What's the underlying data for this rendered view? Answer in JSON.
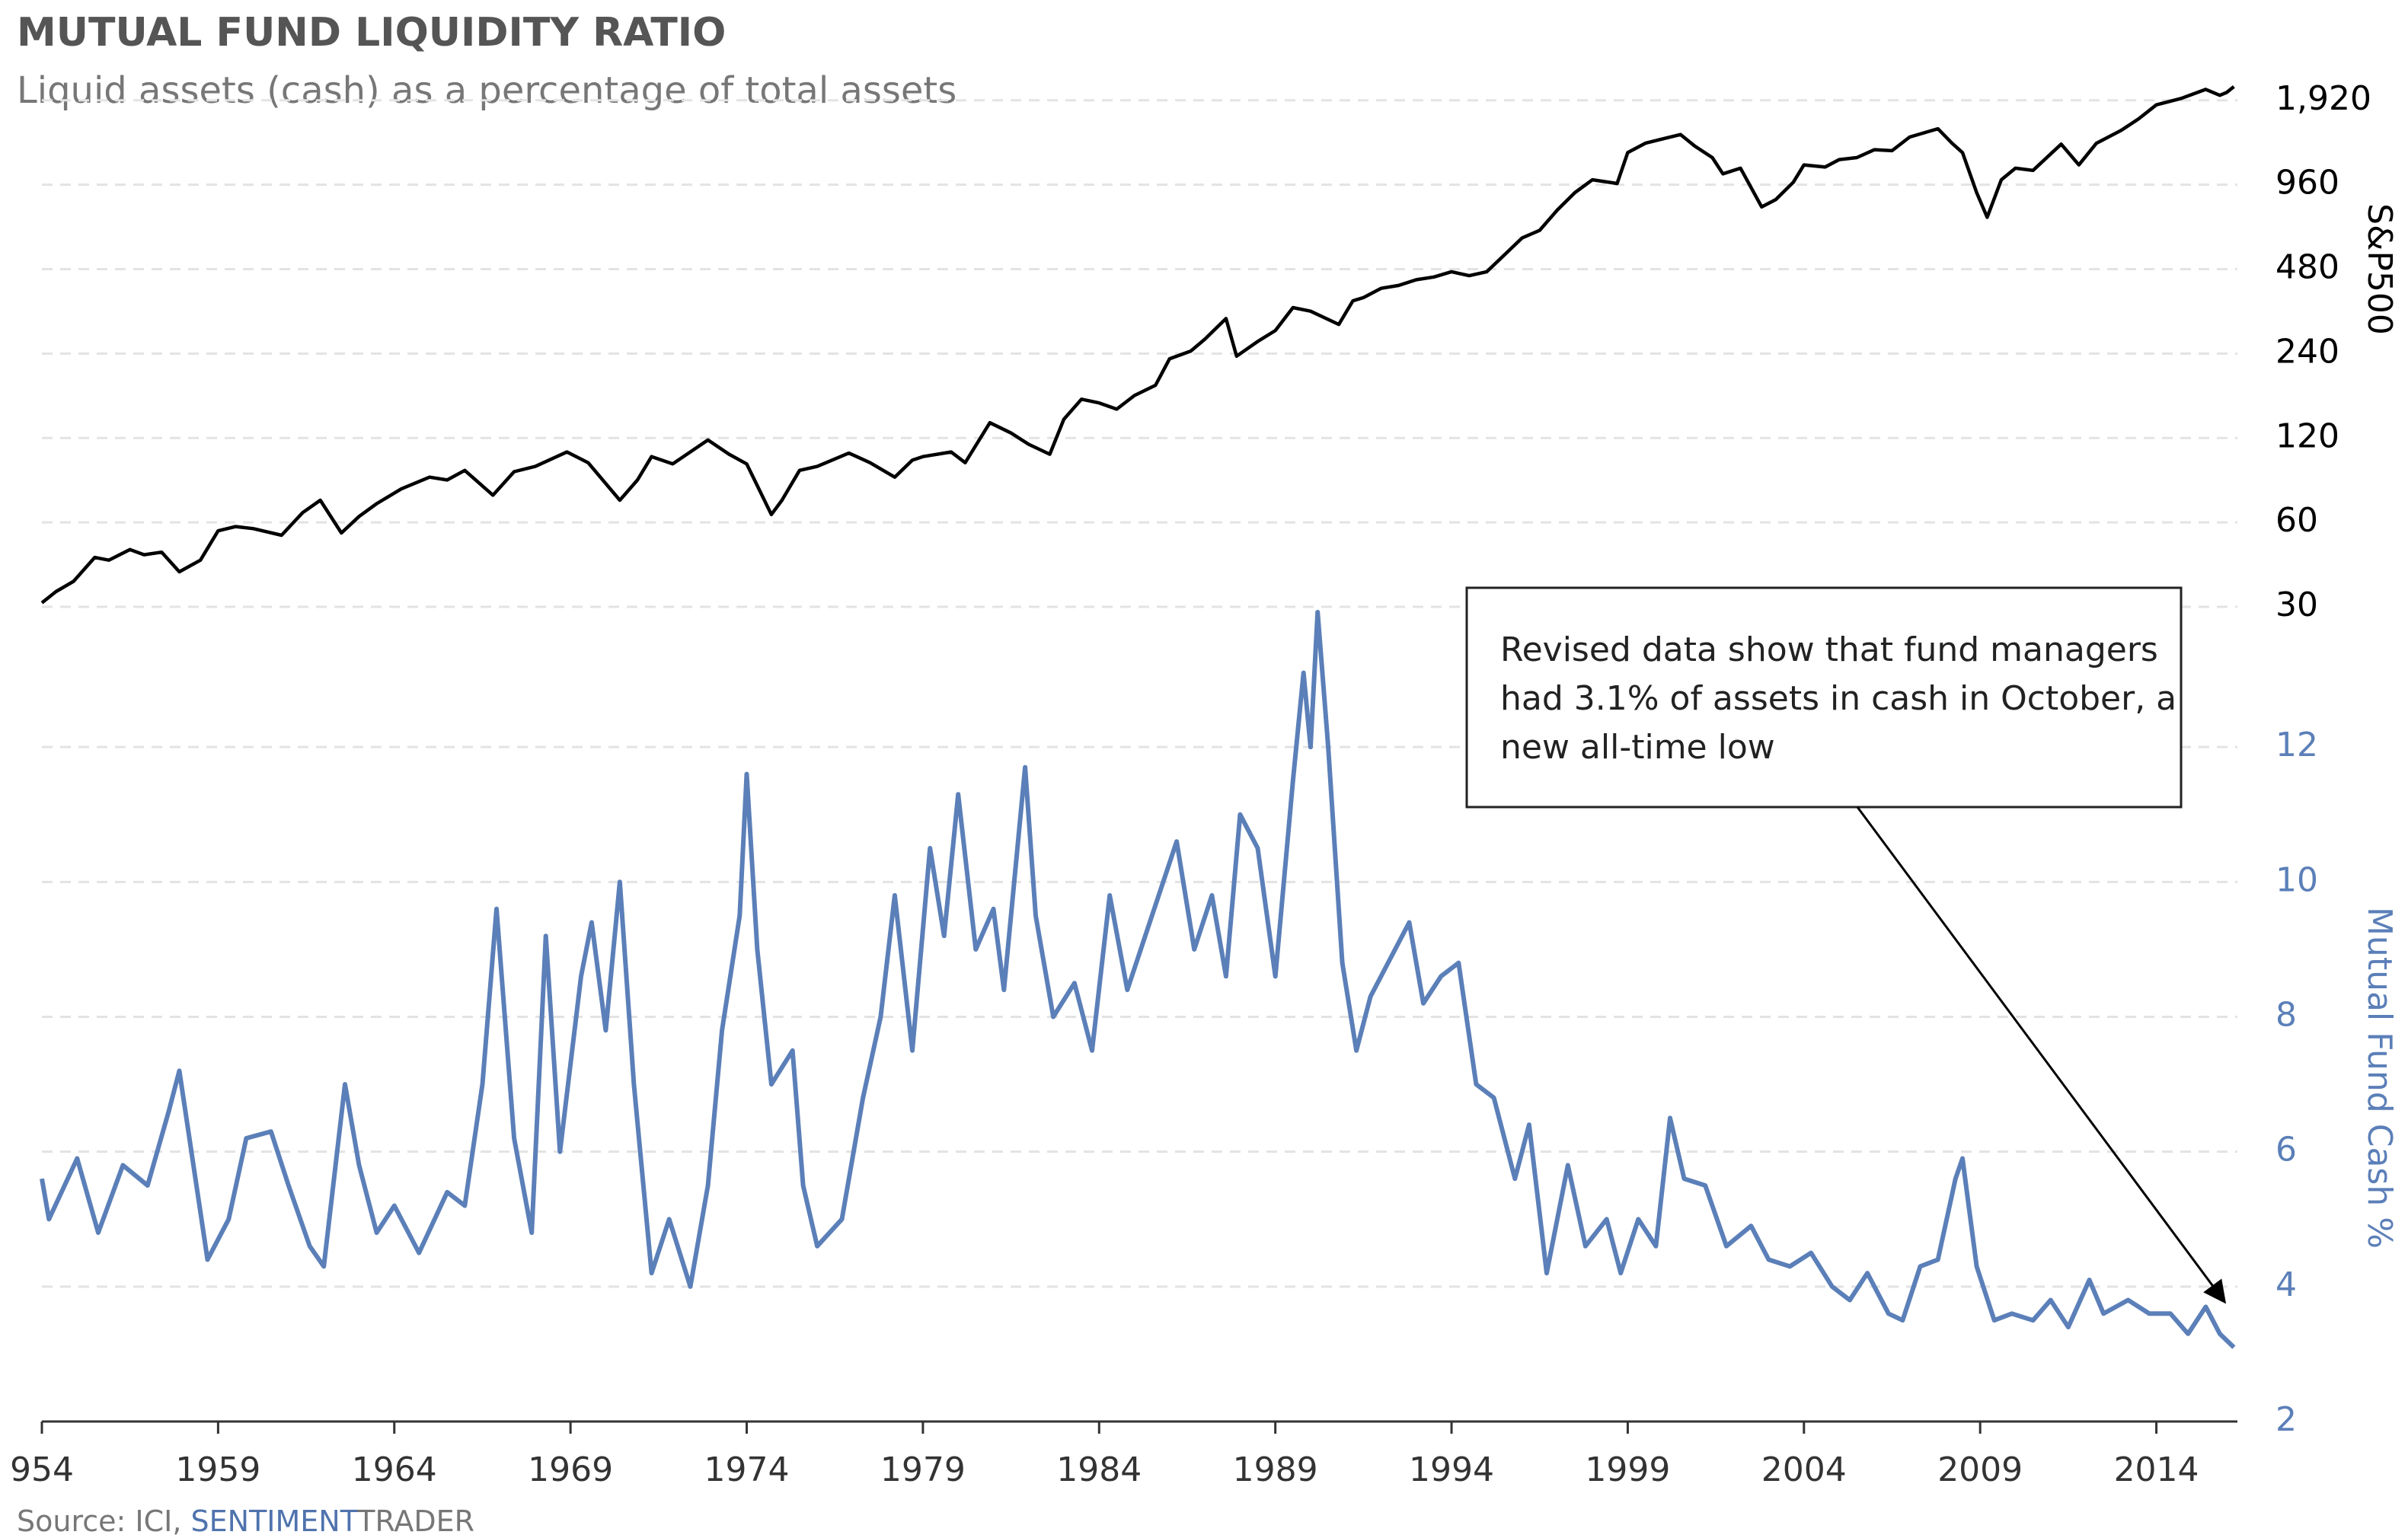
{
  "chart_data": [
    {
      "type": "line",
      "title": "MUTUAL FUND LIQUIDITY RATIO",
      "subtitle": "Liquid assets (cash) as a percentage of total assets",
      "y_label": "S&P500",
      "yscale": "log",
      "yaxis_position": "right",
      "grid": true,
      "color": "#000000",
      "xlim": [
        1954,
        2016.3
      ],
      "ylim": [
        30,
        2200
      ],
      "yticks": [
        30,
        60,
        120,
        240,
        480,
        960,
        {
          "value": 1920,
          "label": "1,920"
        }
      ],
      "x": [
        1954.0,
        1954.4,
        1954.9,
        1955.5,
        1955.9,
        1956.5,
        1956.9,
        1957.4,
        1957.9,
        1958.5,
        1959.0,
        1959.5,
        1960.0,
        1960.8,
        1961.4,
        1961.9,
        1962.5,
        1963.0,
        1963.5,
        1964.2,
        1965.0,
        1965.5,
        1966.0,
        1966.8,
        1967.4,
        1968.0,
        1968.9,
        1969.5,
        1970.4,
        1970.9,
        1971.3,
        1971.9,
        1972.9,
        1973.5,
        1974.0,
        1974.7,
        1975.0,
        1975.5,
        1976.0,
        1976.9,
        1977.5,
        1978.2,
        1978.7,
        1979.0,
        1979.8,
        1980.2,
        1980.9,
        1981.5,
        1982.0,
        1982.6,
        1983.0,
        1983.5,
        1984.0,
        1984.5,
        1985.0,
        1985.6,
        1986.0,
        1986.6,
        1987.0,
        1987.6,
        1987.9,
        1988.5,
        1989.0,
        1989.5,
        1990.0,
        1990.8,
        1991.2,
        1991.5,
        1992.0,
        1992.5,
        1993.0,
        1993.5,
        1994.0,
        1994.5,
        1995.0,
        1995.5,
        1996.0,
        1996.5,
        1997.0,
        1997.5,
        1998.0,
        1998.7,
        1999.0,
        1999.5,
        2000.0,
        2000.5,
        2000.9,
        2001.4,
        2001.7,
        2002.2,
        2002.8,
        2003.2,
        2003.7,
        2004.0,
        2004.6,
        2005.0,
        2005.5,
        2006.0,
        2006.5,
        2007.0,
        2007.8,
        2008.2,
        2008.5,
        2008.9,
        2009.2,
        2009.6,
        2010.0,
        2010.5,
        2011.3,
        2011.8,
        2012.3,
        2013.0,
        2013.5,
        2014.0,
        2014.7,
        2015.4,
        2015.8,
        2016.0,
        2016.2
      ],
      "values": [
        31,
        34,
        37,
        45,
        44,
        48,
        46,
        47,
        40,
        44,
        56,
        58,
        57,
        54,
        65,
        72,
        55,
        63,
        70,
        79,
        87,
        85,
        92,
        75,
        91,
        95,
        107,
        98,
        72,
        85,
        103,
        97,
        118,
        105,
        97,
        64,
        72,
        92,
        95,
        106,
        98,
        87,
        100,
        103,
        107,
        98,
        136,
        125,
        114,
        105,
        140,
        165,
        160,
        152,
        170,
        185,
        230,
        245,
        270,
        320,
        235,
        265,
        290,
        350,
        340,
        305,
        370,
        380,
        410,
        420,
        440,
        450,
        470,
        455,
        470,
        540,
        620,
        660,
        780,
        900,
        1000,
        970,
        1250,
        1350,
        1400,
        1450,
        1320,
        1200,
        1050,
        1100,
        800,
        850,
        980,
        1130,
        1110,
        1180,
        1200,
        1280,
        1270,
        1420,
        1520,
        1350,
        1250,
        900,
        735,
        1000,
        1100,
        1080,
        1340,
        1130,
        1350,
        1500,
        1650,
        1850,
        1950,
        2100,
        2000,
        2050,
        2150
      ]
    },
    {
      "type": "line",
      "y_label": "Mutual Fund Cash %",
      "yaxis_position": "right",
      "grid": true,
      "color": "#5b7fb8",
      "xlim": [
        1954,
        2016.3
      ],
      "ylim": [
        2,
        14
      ],
      "yticks": [
        2,
        4,
        6,
        8,
        10,
        12
      ],
      "xticks": [
        {
          "value": 1954,
          "label": "954"
        },
        1959,
        1964,
        1969,
        1974,
        1979,
        1984,
        1989,
        1994,
        1999,
        2004,
        2009,
        2014
      ],
      "x": [
        1954.0,
        1954.2,
        1955.0,
        1955.6,
        1956.3,
        1957.0,
        1957.6,
        1957.9,
        1958.3,
        1958.7,
        1959.3,
        1959.8,
        1960.5,
        1961.0,
        1961.6,
        1962.0,
        1962.6,
        1963.0,
        1963.5,
        1964.0,
        1964.7,
        1965.5,
        1966.0,
        1966.5,
        1966.9,
        1967.4,
        1967.9,
        1968.3,
        1968.7,
        1969.3,
        1969.6,
        1970.0,
        1970.4,
        1970.8,
        1971.3,
        1971.8,
        1972.4,
        1972.9,
        1973.3,
        1973.8,
        1974.0,
        1974.3,
        1974.7,
        1975.3,
        1975.6,
        1976.0,
        1976.7,
        1977.3,
        1977.8,
        1978.2,
        1978.7,
        1979.2,
        1979.6,
        1980.0,
        1980.5,
        1981.0,
        1981.3,
        1981.9,
        1982.2,
        1982.7,
        1983.3,
        1983.8,
        1984.3,
        1984.8,
        1985.5,
        1986.2,
        1986.7,
        1987.2,
        1987.6,
        1988.0,
        1988.5,
        1989.0,
        1989.5,
        1989.8,
        1990.0,
        1990.2,
        1990.5,
        1990.9,
        1991.3,
        1991.7,
        1992.2,
        1992.8,
        1993.2,
        1993.7,
        1994.2,
        1994.7,
        1995.2,
        1995.8,
        1996.2,
        1996.7,
        1997.3,
        1997.8,
        1998.4,
        1998.8,
        1999.3,
        1999.8,
        2000.2,
        2000.6,
        2001.2,
        2001.8,
        2002.5,
        2003.0,
        2003.6,
        2004.2,
        2004.8,
        2005.3,
        2005.8,
        2006.4,
        2006.8,
        2007.3,
        2007.8,
        2008.3,
        2008.5,
        2008.9,
        2009.4,
        2009.9,
        2010.5,
        2011.0,
        2011.5,
        2012.1,
        2012.5,
        2013.2,
        2013.8,
        2014.4,
        2014.9,
        2015.4,
        2015.8,
        2016.0,
        2016.2
      ],
      "values": [
        5.6,
        5.0,
        5.9,
        4.8,
        5.8,
        5.5,
        6.6,
        7.2,
        5.8,
        4.4,
        5.0,
        6.2,
        6.3,
        5.5,
        4.6,
        4.3,
        7.0,
        5.8,
        4.8,
        5.2,
        4.5,
        5.4,
        5.2,
        7.0,
        9.6,
        6.2,
        4.8,
        9.2,
        6.0,
        8.6,
        9.4,
        7.8,
        10.0,
        7.0,
        4.2,
        5.0,
        4.0,
        5.5,
        7.8,
        9.5,
        11.6,
        9.0,
        7.0,
        7.5,
        5.5,
        4.6,
        5.0,
        6.8,
        8.0,
        9.8,
        7.5,
        10.5,
        9.2,
        11.3,
        9.0,
        9.6,
        8.4,
        11.7,
        9.5,
        8.0,
        8.5,
        7.5,
        9.8,
        8.4,
        9.5,
        10.6,
        9.0,
        9.8,
        8.6,
        11.0,
        10.5,
        8.6,
        11.5,
        13.1,
        12.0,
        14.0,
        12.0,
        8.8,
        7.5,
        8.3,
        8.8,
        9.4,
        8.2,
        8.6,
        8.8,
        7.0,
        6.8,
        5.6,
        6.4,
        4.2,
        5.8,
        4.6,
        5.0,
        4.2,
        5.0,
        4.6,
        6.5,
        5.6,
        5.5,
        4.6,
        4.9,
        4.4,
        4.3,
        4.5,
        4.0,
        3.8,
        4.2,
        3.6,
        3.5,
        4.3,
        4.4,
        5.6,
        5.9,
        4.3,
        3.5,
        3.6,
        3.5,
        3.8,
        3.4,
        4.1,
        3.6,
        3.8,
        3.6,
        3.6,
        3.3,
        3.7,
        3.3,
        3.2,
        3.1
      ],
      "annotation": {
        "text_lines": [
          "Revised data show that fund managers",
          "had 3.1% of assets in cash in October, a",
          "new all-time low"
        ],
        "x": 2015.9,
        "y": 3.8
      }
    }
  ],
  "source": [
    "Source: ICI, ",
    "SENTIMENT",
    "TRADER"
  ]
}
